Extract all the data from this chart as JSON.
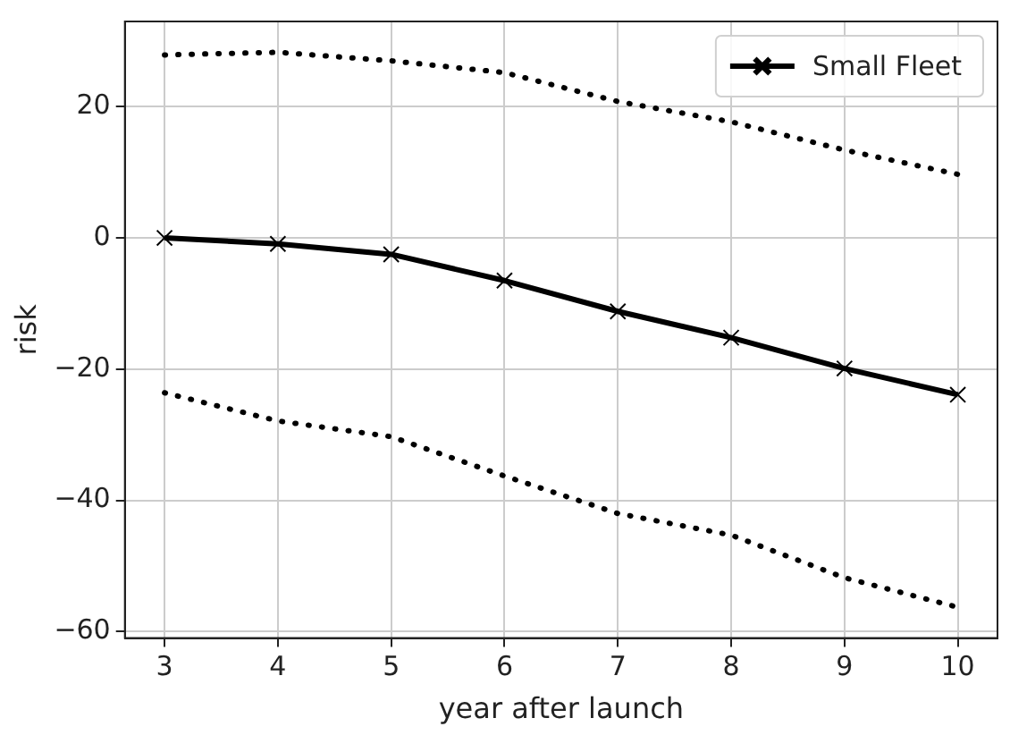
{
  "chart_data": {
    "type": "line",
    "xlabel": "year after launch",
    "ylabel": "risk",
    "x": [
      3,
      4,
      5,
      6,
      7,
      8,
      9,
      10
    ],
    "series": [
      {
        "name": "Small Fleet",
        "color": "#000000",
        "values": [
          0,
          -0.9,
          -2.5,
          -6.5,
          -11.2,
          -15.2,
          -19.9,
          -23.9
        ],
        "marker": "cross",
        "line_style": "solid"
      },
      {
        "color": "#000000",
        "values": [
          27.9,
          28.3,
          27.0,
          25.2,
          20.8,
          17.7,
          13.4,
          9.7
        ],
        "marker": "none",
        "line_style": "dotted"
      },
      {
        "color": "#000000",
        "values": [
          -23.6,
          -27.9,
          -30.3,
          -36.3,
          -42.0,
          -45.3,
          -51.8,
          -56.3
        ],
        "marker": "none",
        "line_style": "dotted"
      }
    ],
    "xlim": [
      2.65,
      10.35
    ],
    "xticks": [
      3,
      4,
      5,
      6,
      7,
      8,
      9,
      10
    ],
    "ylim": [
      -61,
      33
    ],
    "yticks": [
      -60,
      -40,
      -20,
      0,
      20
    ],
    "grid": true,
    "legend": "top right"
  }
}
